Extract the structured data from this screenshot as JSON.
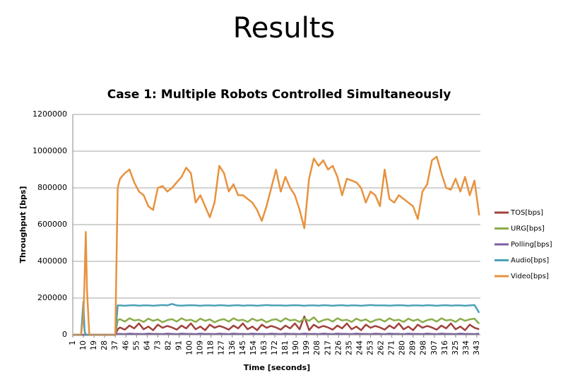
{
  "slide_title": "Results",
  "chart_data": {
    "type": "line",
    "title": "Case 1: Multiple Robots Controlled Simultaneously",
    "x_label": "Time [seconds]",
    "y_label": "Throughput [bps]",
    "xlim": [
      1,
      346
    ],
    "ylim": [
      0,
      1200000
    ],
    "xticks": [
      1,
      10,
      19,
      28,
      37,
      46,
      55,
      64,
      73,
      82,
      91,
      100,
      109,
      118,
      127,
      136,
      145,
      154,
      163,
      172,
      181,
      190,
      199,
      208,
      217,
      226,
      235,
      244,
      253,
      262,
      271,
      280,
      289,
      298,
      307,
      316,
      325,
      334,
      343
    ],
    "yticks": [
      0,
      200000,
      400000,
      600000,
      800000,
      1000000,
      1200000
    ],
    "grid": true,
    "legend": "right",
    "x": [
      1,
      8,
      10,
      11,
      12,
      13,
      15,
      20,
      30,
      37,
      39,
      41,
      45,
      49,
      53,
      57,
      61,
      65,
      69,
      73,
      77,
      81,
      85,
      89,
      93,
      97,
      101,
      105,
      109,
      113,
      117,
      121,
      125,
      129,
      133,
      137,
      141,
      145,
      149,
      153,
      157,
      161,
      165,
      169,
      173,
      177,
      181,
      185,
      189,
      193,
      197,
      201,
      205,
      209,
      213,
      217,
      221,
      225,
      229,
      233,
      237,
      241,
      245,
      249,
      253,
      257,
      261,
      265,
      269,
      273,
      277,
      281,
      285,
      289,
      293,
      297,
      301,
      305,
      309,
      313,
      317,
      321,
      325,
      329,
      333,
      337,
      341,
      345
    ],
    "series": [
      {
        "name": "TOS[bps]",
        "color": "#a0413c",
        "values": [
          0,
          0,
          0,
          0,
          0,
          0,
          0,
          0,
          0,
          0,
          30000,
          40000,
          28000,
          50000,
          35000,
          62000,
          30000,
          45000,
          25000,
          55000,
          38000,
          48000,
          40000,
          28000,
          50000,
          35000,
          62000,
          30000,
          45000,
          25000,
          55000,
          38000,
          48000,
          40000,
          28000,
          50000,
          35000,
          62000,
          30000,
          45000,
          25000,
          55000,
          38000,
          48000,
          40000,
          28000,
          50000,
          35000,
          62000,
          30000,
          100000,
          25000,
          55000,
          38000,
          48000,
          40000,
          28000,
          50000,
          35000,
          62000,
          30000,
          45000,
          25000,
          55000,
          38000,
          48000,
          40000,
          28000,
          50000,
          35000,
          62000,
          30000,
          45000,
          25000,
          55000,
          38000,
          48000,
          40000,
          28000,
          50000,
          35000,
          62000,
          30000,
          45000,
          25000,
          55000,
          38000,
          30000
        ]
      },
      {
        "name": "URG[bps]",
        "color": "#8aac4a",
        "values": [
          0,
          0,
          0,
          0,
          0,
          0,
          0,
          0,
          0,
          0,
          80000,
          85000,
          72000,
          90000,
          78000,
          82000,
          70000,
          88000,
          76000,
          84000,
          68000,
          80000,
          85000,
          72000,
          90000,
          78000,
          82000,
          70000,
          88000,
          76000,
          84000,
          68000,
          80000,
          85000,
          72000,
          90000,
          78000,
          82000,
          70000,
          88000,
          76000,
          84000,
          68000,
          80000,
          85000,
          72000,
          90000,
          78000,
          82000,
          70000,
          88000,
          76000,
          95000,
          68000,
          80000,
          85000,
          72000,
          90000,
          78000,
          82000,
          70000,
          88000,
          76000,
          84000,
          68000,
          80000,
          85000,
          72000,
          90000,
          78000,
          82000,
          70000,
          88000,
          76000,
          84000,
          68000,
          80000,
          85000,
          72000,
          90000,
          78000,
          82000,
          70000,
          88000,
          76000,
          84000,
          88000,
          60000
        ]
      },
      {
        "name": "Polling[bps]",
        "color": "#7c5fa0",
        "values": [
          0,
          0,
          0,
          0,
          0,
          0,
          0,
          0,
          0,
          0,
          5000,
          5000,
          4000,
          6000,
          5000,
          5000,
          4000,
          6000,
          5000,
          5000,
          4000,
          6000,
          5000,
          4000,
          6000,
          5000,
          5000,
          4000,
          6000,
          5000,
          5000,
          4000,
          6000,
          5000,
          4000,
          6000,
          5000,
          5000,
          4000,
          6000,
          5000,
          5000,
          4000,
          6000,
          5000,
          4000,
          6000,
          5000,
          5000,
          4000,
          6000,
          5000,
          5000,
          4000,
          6000,
          5000,
          4000,
          6000,
          5000,
          5000,
          4000,
          6000,
          5000,
          5000,
          4000,
          6000,
          5000,
          4000,
          6000,
          5000,
          5000,
          4000,
          6000,
          5000,
          5000,
          4000,
          6000,
          5000,
          4000,
          6000,
          5000,
          5000,
          4000,
          6000,
          5000,
          5000,
          4000,
          6000
        ]
      },
      {
        "name": "Audio[bps]",
        "color": "#4aa0b5",
        "values": [
          0,
          0,
          180000,
          20000,
          0,
          0,
          0,
          0,
          0,
          0,
          160000,
          160000,
          158000,
          160000,
          161000,
          159000,
          160000,
          160000,
          158000,
          160000,
          162000,
          160000,
          168000,
          160000,
          159000,
          160000,
          161000,
          160000,
          158000,
          160000,
          160000,
          159000,
          161000,
          160000,
          158000,
          160000,
          161000,
          159000,
          160000,
          160000,
          158000,
          160000,
          162000,
          160000,
          160000,
          160000,
          159000,
          160000,
          161000,
          160000,
          158000,
          160000,
          160000,
          159000,
          161000,
          160000,
          158000,
          160000,
          161000,
          159000,
          160000,
          160000,
          158000,
          160000,
          162000,
          160000,
          160000,
          160000,
          159000,
          160000,
          161000,
          160000,
          158000,
          160000,
          160000,
          159000,
          161000,
          160000,
          158000,
          160000,
          161000,
          159000,
          160000,
          160000,
          158000,
          160000,
          162000,
          120000
        ]
      },
      {
        "name": "Video[bps]",
        "color": "#e7923e",
        "values": [
          0,
          0,
          100000,
          300000,
          560000,
          250000,
          0,
          0,
          0,
          0,
          800000,
          850000,
          880000,
          900000,
          830000,
          780000,
          760000,
          700000,
          680000,
          800000,
          810000,
          780000,
          800000,
          830000,
          860000,
          910000,
          880000,
          720000,
          760000,
          700000,
          640000,
          720000,
          920000,
          880000,
          780000,
          820000,
          760000,
          760000,
          740000,
          720000,
          680000,
          620000,
          700000,
          800000,
          900000,
          780000,
          860000,
          800000,
          760000,
          680000,
          580000,
          850000,
          960000,
          920000,
          950000,
          900000,
          920000,
          860000,
          760000,
          850000,
          840000,
          830000,
          800000,
          720000,
          780000,
          760000,
          700000,
          900000,
          740000,
          720000,
          760000,
          740000,
          720000,
          700000,
          630000,
          780000,
          820000,
          950000,
          970000,
          880000,
          800000,
          790000,
          850000,
          780000,
          860000,
          760000,
          840000,
          650000
        ]
      }
    ]
  }
}
